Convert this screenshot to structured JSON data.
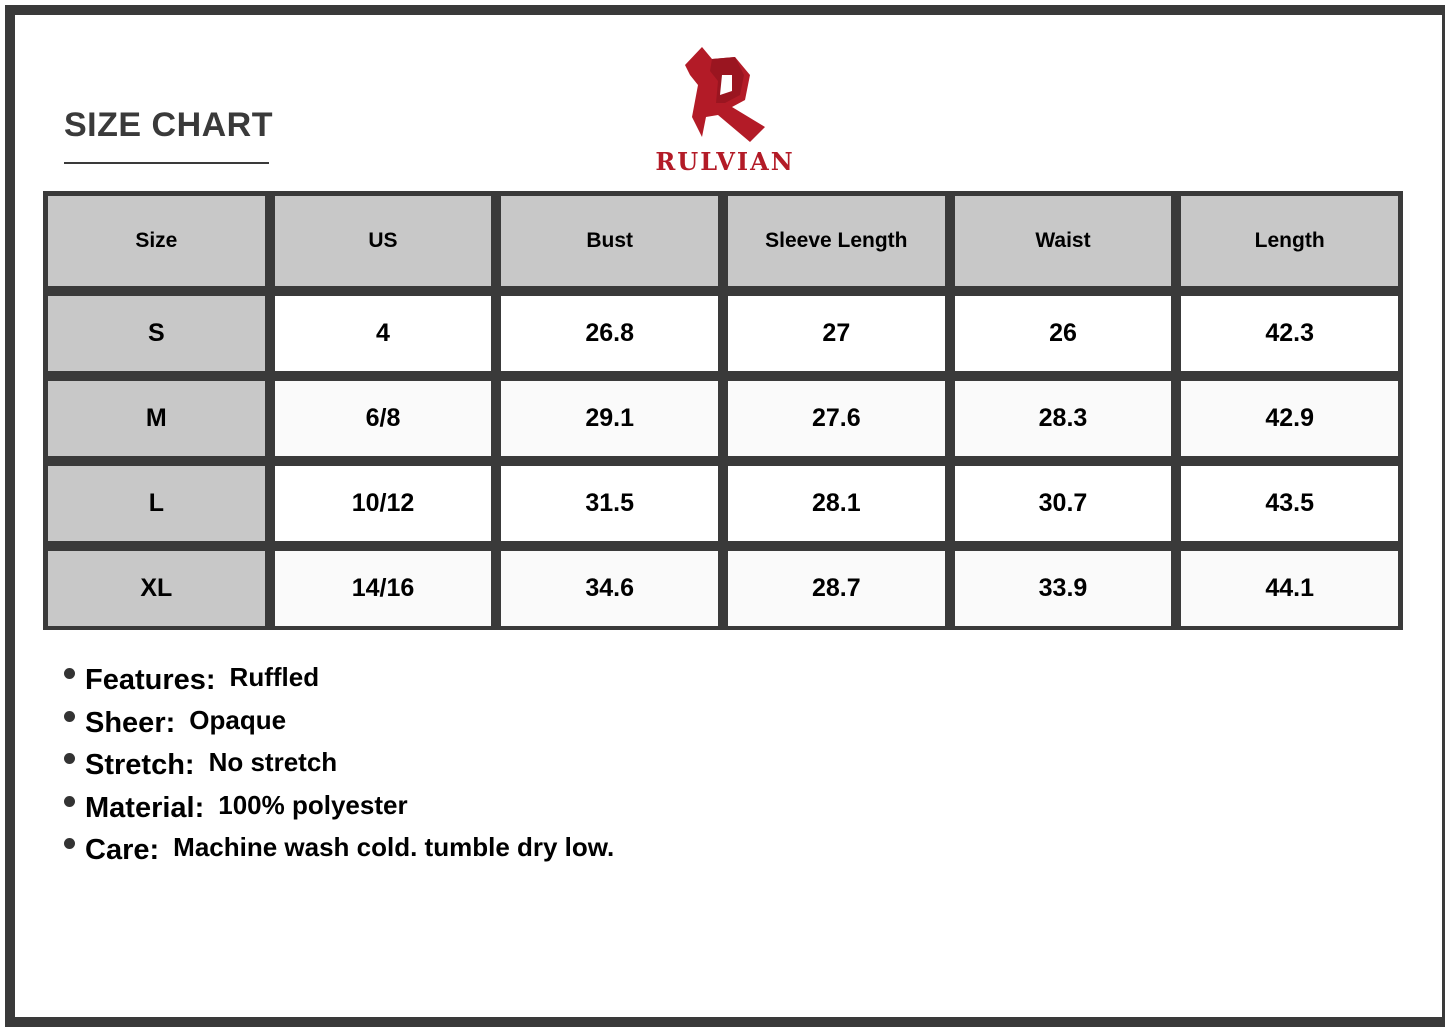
{
  "title": "SIZE CHART",
  "brand": {
    "name": "RULVIAN",
    "color": "#b31b27"
  },
  "table": {
    "headers": [
      "Size",
      "US",
      "Bust",
      "Sleeve Length",
      "Waist",
      "Length"
    ],
    "rows": [
      [
        "S",
        "4",
        "26.8",
        "27",
        "26",
        "42.3"
      ],
      [
        "M",
        "6/8",
        "29.1",
        "27.6",
        "28.3",
        "42.9"
      ],
      [
        "L",
        "10/12",
        "31.5",
        "28.1",
        "30.7",
        "43.5"
      ],
      [
        "XL",
        "14/16",
        "34.6",
        "28.7",
        "33.9",
        "44.1"
      ]
    ]
  },
  "features": [
    {
      "label": "Features:",
      "value": "Ruffled"
    },
    {
      "label": "Sheer:",
      "value": "Opaque"
    },
    {
      "label": "Stretch:",
      "value": "No stretch"
    },
    {
      "label": "Material:",
      "value": "100% polyester"
    },
    {
      "label": "Care:",
      "value": "Machine wash cold. tumble dry low."
    }
  ]
}
